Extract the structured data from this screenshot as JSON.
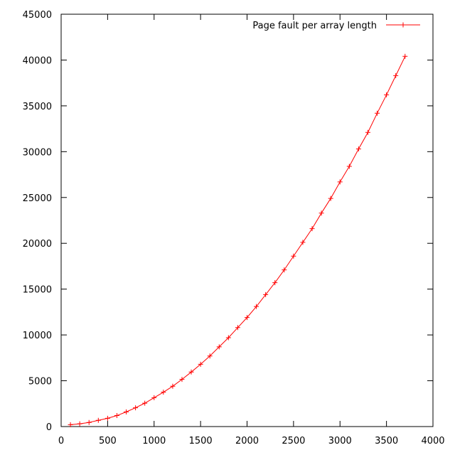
{
  "chart_data": {
    "type": "line",
    "title": "",
    "xlabel": "",
    "ylabel": "",
    "xlim": [
      0,
      4000
    ],
    "ylim": [
      0,
      45000
    ],
    "x_ticks": [
      0,
      500,
      1000,
      1500,
      2000,
      2500,
      3000,
      3500,
      4000
    ],
    "y_ticks": [
      0,
      5000,
      10000,
      15000,
      20000,
      25000,
      30000,
      35000,
      40000,
      45000
    ],
    "grid": false,
    "legend_position": "top-right",
    "series": [
      {
        "name": "Page fault per array length",
        "color": "#ff0000",
        "marker": "plus",
        "x": [
          100,
          200,
          300,
          400,
          500,
          600,
          700,
          800,
          900,
          1000,
          1100,
          1200,
          1300,
          1400,
          1500,
          1600,
          1700,
          1800,
          1900,
          2000,
          2100,
          2200,
          2300,
          2400,
          2500,
          2600,
          2700,
          2800,
          2900,
          3000,
          3100,
          3200,
          3300,
          3400,
          3500,
          3600,
          3700
        ],
        "y": [
          200,
          300,
          450,
          680,
          900,
          1200,
          1600,
          2050,
          2550,
          3150,
          3750,
          4400,
          5150,
          5950,
          6800,
          7700,
          8700,
          9700,
          10800,
          11900,
          13100,
          14400,
          15700,
          17100,
          18600,
          20100,
          21600,
          23300,
          24900,
          26700,
          28400,
          30300,
          32100,
          34200,
          36200,
          38300,
          40400
        ]
      }
    ]
  }
}
